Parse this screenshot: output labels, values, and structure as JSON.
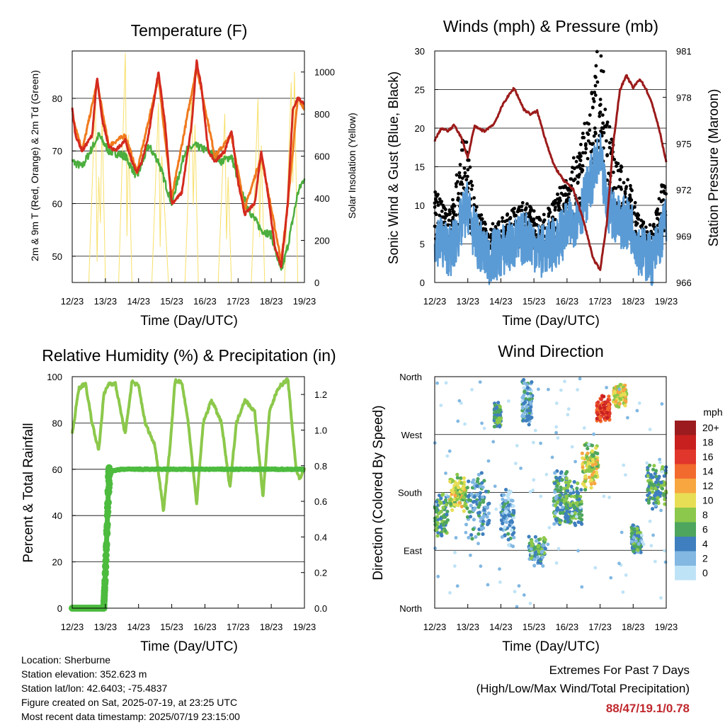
{
  "panels": {
    "temperature": {
      "title": "Temperature (F)",
      "xlabel": "Time (Day/UTC)",
      "ylabel_left": "2m & 9m T (Red, Orange) & 2m Td (Green)",
      "ylabel_right": "Solar Insolation (Yellow)"
    },
    "winds": {
      "title": "Winds (mph) & Pressure (mb)",
      "xlabel": "Time (Day/UTC)",
      "ylabel_left": "Sonic Wind & Gust (Blue, Black)",
      "ylabel_right": "Station Pressure (Maroon)"
    },
    "humidity": {
      "title": "Relative Humidity (%) & Precipitation (in)",
      "xlabel": "Time (Day/UTC)",
      "ylabel_left": "Percent & Total Rainfall"
    },
    "direction": {
      "title": "Wind Direction",
      "xlabel": "Time (Day/UTC)",
      "ylabel_left": "Direction (Colored By Speed)",
      "legend_title": "mph"
    }
  },
  "info": {
    "location": "Location: Sherburne",
    "elevation": "Station elevation: 352.623 m",
    "latlon": "Station lat/lon: 42.6403; -75.4837",
    "created": "Figure created on Sat, 2025-07-19, at 23:25 UTC",
    "recent": "Most recent data timestamp: 2025/07/19 23:15:00"
  },
  "extremes": {
    "line1": "Extremes For Past 7 Days",
    "line2": "(High/Low/Max Wind/Total Precipitation)",
    "values": "88/47/19.1/0.78"
  },
  "colors": {
    "temp2m": "#d42a1f",
    "temp9m": "#f07a1e",
    "dewpoint": "#4cae3e",
    "solar": "#f7e06a",
    "wind": "#5b9bd5",
    "gust": "#000000",
    "pressure": "#9c1b1b",
    "rh": "#8cc84b",
    "precip": "#4cbb3e"
  },
  "chart_data": [
    {
      "type": "line",
      "title": "Temperature (F)",
      "xlabel": "Time (Day/UTC)",
      "ylabel": "2m & 9m T (Red, Orange) & 2m Td (Green)",
      "ylabel_right": "Solar Insolation (Yellow)",
      "x_ticks": [
        "12/23",
        "13/23",
        "14/23",
        "15/23",
        "16/23",
        "17/23",
        "18/23",
        "19/23"
      ],
      "ylim": [
        45,
        89
      ],
      "yticks": [
        50,
        60,
        70,
        80
      ],
      "ylim_right": [
        0,
        1100
      ],
      "yticks_right": [
        0,
        200,
        400,
        600,
        800,
        1000
      ],
      "series": [
        {
          "name": "2m T",
          "x": [
            0,
            0.1,
            0.3,
            0.6,
            0.75,
            0.9,
            1.1,
            1.3,
            1.6,
            1.8,
            1.95,
            2.1,
            2.3,
            2.6,
            2.8,
            3.0,
            3.3,
            3.6,
            3.75,
            3.9,
            4.1,
            4.3,
            4.6,
            4.8,
            5.0,
            5.2,
            5.5,
            5.7,
            5.9,
            6.1,
            6.3,
            6.5,
            6.65,
            6.8,
            7.0
          ],
          "y": [
            78,
            73,
            70,
            73,
            84,
            76,
            71,
            70,
            72,
            68,
            66,
            68,
            73,
            85,
            75,
            60,
            62,
            75,
            87,
            82,
            70,
            68,
            70,
            74,
            64,
            58,
            60,
            70,
            62,
            52,
            48,
            60,
            78,
            80,
            79
          ]
        },
        {
          "name": "9m T",
          "x": [
            0,
            0.3,
            0.75,
            1.1,
            1.6,
            1.95,
            2.6,
            3.0,
            3.75,
            4.3,
            4.8,
            5.2,
            5.7,
            6.3,
            6.5,
            6.8,
            7.0
          ],
          "y": [
            77,
            70,
            83,
            71,
            73,
            66,
            84,
            61,
            86,
            69,
            73,
            59,
            69,
            49,
            60,
            80,
            78
          ]
        },
        {
          "name": "2m Td",
          "x": [
            0,
            0.3,
            0.8,
            1.1,
            1.6,
            1.95,
            2.3,
            2.6,
            3.0,
            3.4,
            3.7,
            4.1,
            4.5,
            4.8,
            5.1,
            5.4,
            5.7,
            6.0,
            6.3,
            6.5,
            6.8,
            7.0
          ],
          "y": [
            68,
            67,
            73,
            70,
            69,
            65,
            71,
            68,
            60,
            70,
            71,
            70,
            68,
            69,
            62,
            58,
            55,
            54,
            47,
            52,
            62,
            65
          ]
        },
        {
          "name": "Solar Insolation",
          "axis": "right",
          "x": [
            0.5,
            0.7,
            0.8,
            0.9,
            1.0,
            1.4,
            1.6,
            1.7,
            1.8,
            2.4,
            2.6,
            2.7,
            2.9,
            3.4,
            3.6,
            3.7,
            3.8,
            4.4,
            4.6,
            4.7,
            4.8,
            5.4,
            5.6,
            5.7,
            5.8,
            6.4,
            6.6,
            6.7,
            6.8
          ],
          "y": [
            0,
            900,
            500,
            800,
            0,
            0,
            1090,
            700,
            0,
            0,
            850,
            600,
            0,
            0,
            900,
            750,
            0,
            0,
            800,
            500,
            0,
            0,
            870,
            650,
            0,
            0,
            950,
            1000,
            0
          ]
        }
      ]
    },
    {
      "type": "line",
      "title": "Winds (mph) & Pressure (mb)",
      "xlabel": "Time (Day/UTC)",
      "ylabel": "Sonic Wind & Gust (Blue, Black)",
      "ylabel_right": "Station Pressure (Maroon)",
      "x_ticks": [
        "12/23",
        "13/23",
        "14/23",
        "15/23",
        "16/23",
        "17/23",
        "18/23",
        "19/23"
      ],
      "ylim": [
        0,
        30
      ],
      "yticks": [
        0,
        5,
        10,
        15,
        20,
        25,
        30
      ],
      "ylim_right": [
        966,
        981
      ],
      "yticks_right": [
        966,
        969,
        972,
        975,
        978,
        981
      ],
      "series": [
        {
          "name": "Station Pressure",
          "axis": "right",
          "x": [
            0,
            0.2,
            0.4,
            0.6,
            0.8,
            1.0,
            1.2,
            1.5,
            1.8,
            2.1,
            2.4,
            2.7,
            2.9,
            3.1,
            3.3,
            3.6,
            3.9,
            4.2,
            4.5,
            4.8,
            5.0,
            5.2,
            5.4,
            5.6,
            5.8,
            6.0,
            6.2,
            6.4,
            6.6,
            6.8,
            7.0
          ],
          "y": [
            975.2,
            976,
            975.8,
            976.2,
            975.4,
            974.1,
            976.1,
            975.8,
            976.3,
            977.7,
            978.6,
            977.2,
            976.9,
            977.1,
            975.6,
            973.6,
            972.6,
            972,
            970,
            967.5,
            966.8,
            969.8,
            975,
            978.5,
            979.4,
            978.6,
            979.2,
            978.5,
            977.4,
            975.8,
            973.8
          ]
        },
        {
          "name": "Sonic Wind",
          "x": [
            0,
            0.5,
            1.0,
            1.2,
            1.6,
            2.0,
            2.4,
            2.8,
            3.2,
            3.6,
            4.0,
            4.4,
            4.8,
            5.0,
            5.2,
            5.6,
            6.0,
            6.2,
            6.6,
            7.0
          ],
          "y": [
            6,
            4,
            10,
            6,
            3,
            4,
            5,
            6,
            4,
            5,
            7,
            9,
            14,
            16,
            10,
            8,
            7,
            4,
            3,
            8
          ]
        },
        {
          "name": "Gust",
          "x": [
            0,
            0.5,
            0.9,
            1.2,
            1.6,
            2.0,
            2.4,
            2.8,
            3.2,
            3.6,
            4.0,
            4.4,
            4.8,
            5.0,
            5.2,
            5.6,
            6.0,
            6.2,
            6.6,
            7.0
          ],
          "y": [
            10,
            8,
            17,
            9,
            6,
            7,
            8,
            9,
            7,
            9,
            12,
            15,
            22,
            28,
            18,
            13,
            10,
            7,
            6,
            13
          ]
        }
      ]
    },
    {
      "type": "line",
      "title": "Relative Humidity (%) & Precipitation (in)",
      "xlabel": "Time (Day/UTC)",
      "ylabel": "Percent & Total Rainfall",
      "x_ticks": [
        "12/23",
        "13/23",
        "14/23",
        "15/23",
        "16/23",
        "17/23",
        "18/23",
        "19/23"
      ],
      "ylim": [
        0,
        100
      ],
      "yticks": [
        0,
        20,
        40,
        60,
        80,
        100
      ],
      "ylim_right": [
        0,
        1.3
      ],
      "yticks_right": [
        0,
        0.2,
        0.4,
        0.6,
        0.8,
        1.0,
        1.2
      ],
      "series": [
        {
          "name": "Relative Humidity",
          "x": [
            0,
            0.2,
            0.4,
            0.6,
            0.8,
            0.95,
            1.1,
            1.3,
            1.6,
            1.8,
            2.0,
            2.2,
            2.5,
            2.75,
            2.95,
            3.1,
            3.3,
            3.5,
            3.75,
            3.95,
            4.2,
            4.5,
            4.75,
            4.95,
            5.2,
            5.5,
            5.75,
            5.95,
            6.2,
            6.5,
            6.75,
            6.85,
            7.0
          ],
          "y": [
            75,
            95,
            97,
            80,
            68,
            92,
            97,
            97,
            75,
            98,
            96,
            80,
            70,
            42,
            70,
            98,
            98,
            80,
            45,
            80,
            90,
            80,
            52,
            80,
            90,
            85,
            48,
            85,
            95,
            99,
            60,
            56,
            60
          ]
        },
        {
          "name": "Total Precipitation",
          "axis": "right",
          "x": [
            0,
            0.95,
            1.0,
            1.05,
            1.1,
            1.2,
            1.5,
            2.0,
            3.0,
            4.0,
            5.0,
            6.0,
            7.0
          ],
          "y": [
            0,
            0,
            0.2,
            0.45,
            0.72,
            0.77,
            0.78,
            0.78,
            0.78,
            0.78,
            0.78,
            0.78,
            0.78
          ]
        }
      ]
    },
    {
      "type": "scatter",
      "title": "Wind Direction",
      "xlabel": "Time (Day/UTC)",
      "ylabel": "Direction (Colored By Speed)",
      "x_ticks": [
        "12/23",
        "13/23",
        "14/23",
        "15/23",
        "16/23",
        "17/23",
        "18/23",
        "19/23"
      ],
      "y_ticks": [
        "North",
        "East",
        "South",
        "West",
        "North"
      ],
      "ylim": [
        0,
        360
      ],
      "legend_title": "mph",
      "legend": [
        "20+",
        "18",
        "16",
        "14",
        "12",
        "10",
        "8",
        "6",
        "4",
        "2",
        "0"
      ],
      "legend_colors": [
        "#9b1b1e",
        "#c8201f",
        "#e0362b",
        "#f26a2e",
        "#f7a640",
        "#e8de55",
        "#8cc84b",
        "#4ea65e",
        "#3f7fbf",
        "#82b8e2",
        "#bfe3f6"
      ],
      "clusters": [
        {
          "x": 0.15,
          "y": 145,
          "spread_x": 0.25,
          "spread_y": 40,
          "speed": 6
        },
        {
          "x": 0.7,
          "y": 180,
          "spread_x": 0.25,
          "spread_y": 30,
          "speed": 9
        },
        {
          "x": 1.3,
          "y": 160,
          "spread_x": 0.35,
          "spread_y": 60,
          "speed": 4
        },
        {
          "x": 1.9,
          "y": 300,
          "spread_x": 0.1,
          "spread_y": 20,
          "speed": 6
        },
        {
          "x": 2.2,
          "y": 140,
          "spread_x": 0.2,
          "spread_y": 50,
          "speed": 3
        },
        {
          "x": 2.8,
          "y": 320,
          "spread_x": 0.15,
          "spread_y": 40,
          "speed": 3
        },
        {
          "x": 3.1,
          "y": 90,
          "spread_x": 0.25,
          "spread_y": 25,
          "speed": 5
        },
        {
          "x": 3.8,
          "y": 170,
          "spread_x": 0.2,
          "spread_y": 50,
          "speed": 5
        },
        {
          "x": 4.2,
          "y": 160,
          "spread_x": 0.25,
          "spread_y": 40,
          "speed": 6
        },
        {
          "x": 4.7,
          "y": 220,
          "spread_x": 0.25,
          "spread_y": 40,
          "speed": 9
        },
        {
          "x": 5.1,
          "y": 310,
          "spread_x": 0.2,
          "spread_y": 25,
          "speed": 16
        },
        {
          "x": 5.6,
          "y": 330,
          "spread_x": 0.2,
          "spread_y": 20,
          "speed": 10
        },
        {
          "x": 6.1,
          "y": 110,
          "spread_x": 0.15,
          "spread_y": 25,
          "speed": 5
        },
        {
          "x": 6.7,
          "y": 190,
          "spread_x": 0.3,
          "spread_y": 40,
          "speed": 6
        }
      ]
    }
  ]
}
